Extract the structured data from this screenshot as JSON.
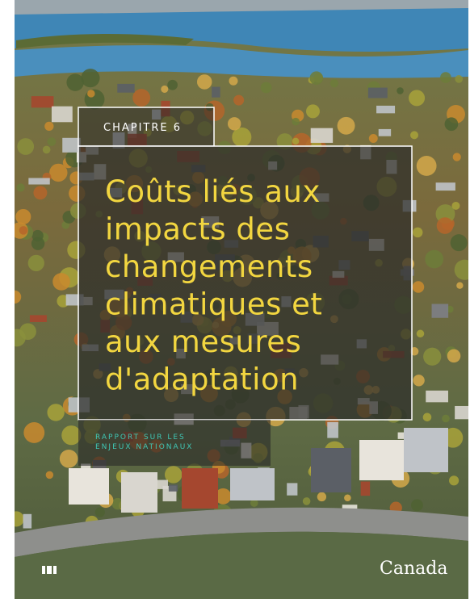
{
  "chapter_label": "CHAPITRE 6",
  "title_lines": [
    "Coûts liés aux",
    "impacts des",
    "changements",
    "climatiques et",
    "aux mesures",
    "d'adaptation"
  ],
  "report_lines": [
    "RAPPORT SUR LES",
    "ENJEUX NATIONAUX"
  ],
  "wordmark": "Canada"
}
